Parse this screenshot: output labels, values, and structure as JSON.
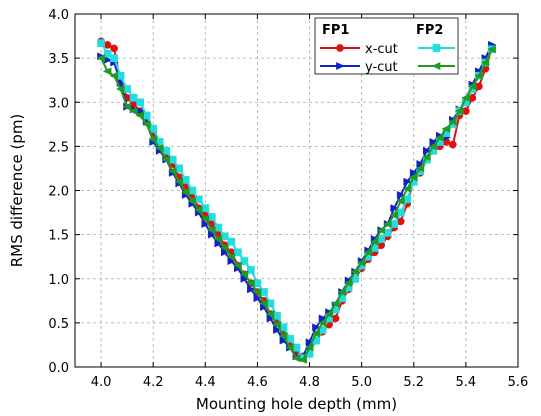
{
  "chart_data": {
    "type": "line",
    "title": "",
    "xlabel": "Mounting hole depth (mm)",
    "ylabel": "RMS difference (pm)",
    "xlim": [
      3.9,
      5.6
    ],
    "ylim": [
      0.0,
      4.0
    ],
    "xticks": [
      "4.0",
      "4.2",
      "4.4",
      "4.6",
      "4.8",
      "5.0",
      "5.2",
      "5.4",
      "5.6"
    ],
    "yticks": [
      "0.0",
      "0.5",
      "1.0",
      "1.5",
      "2.0",
      "2.5",
      "3.0",
      "3.5",
      "4.0"
    ],
    "grid": true,
    "legend": {
      "placement": "top-right",
      "group_titles": [
        "FP1",
        "FP2"
      ]
    },
    "series": [
      {
        "name": "x-cut",
        "group": "FP1",
        "color": "#dd1111",
        "marker": "circle",
        "x": [
          4.0,
          4.025,
          4.05,
          4.075,
          4.1,
          4.125,
          4.15,
          4.175,
          4.2,
          4.225,
          4.25,
          4.275,
          4.3,
          4.325,
          4.35,
          4.375,
          4.4,
          4.425,
          4.45,
          4.475,
          4.5,
          4.525,
          4.55,
          4.575,
          4.6,
          4.625,
          4.65,
          4.675,
          4.7,
          4.725,
          4.75,
          4.775,
          4.8,
          4.825,
          4.85,
          4.875,
          4.9,
          4.925,
          4.95,
          4.975,
          5.0,
          5.025,
          5.05,
          5.075,
          5.1,
          5.125,
          5.15,
          5.175,
          5.2,
          5.225,
          5.25,
          5.275,
          5.3,
          5.325,
          5.35,
          5.375,
          5.4,
          5.425,
          5.45,
          5.475,
          5.5
        ],
        "y": [
          3.69,
          3.65,
          3.61,
          3.22,
          3.05,
          2.98,
          2.9,
          2.82,
          2.65,
          2.52,
          2.38,
          2.3,
          2.15,
          2.05,
          1.95,
          1.8,
          1.72,
          1.62,
          1.5,
          1.38,
          1.3,
          1.15,
          1.05,
          0.95,
          0.85,
          0.75,
          0.6,
          0.5,
          0.38,
          0.28,
          0.18,
          0.12,
          0.2,
          0.3,
          0.4,
          0.48,
          0.55,
          0.75,
          0.88,
          1.0,
          1.12,
          1.22,
          1.3,
          1.38,
          1.48,
          1.58,
          1.65,
          1.85,
          2.12,
          2.2,
          2.35,
          2.45,
          2.5,
          2.55,
          2.52,
          2.85,
          2.9,
          3.05,
          3.18,
          3.38,
          3.62
        ]
      },
      {
        "name": "y-cut",
        "group": "FP1",
        "color": "#1122cc",
        "marker": "triangle-right",
        "x": [
          4.0,
          4.025,
          4.05,
          4.075,
          4.1,
          4.125,
          4.15,
          4.175,
          4.2,
          4.225,
          4.25,
          4.275,
          4.3,
          4.325,
          4.35,
          4.375,
          4.4,
          4.425,
          4.45,
          4.475,
          4.5,
          4.525,
          4.55,
          4.575,
          4.6,
          4.625,
          4.65,
          4.675,
          4.7,
          4.725,
          4.75,
          4.775,
          4.8,
          4.825,
          4.85,
          4.875,
          4.9,
          4.925,
          4.95,
          4.975,
          5.0,
          5.025,
          5.05,
          5.075,
          5.1,
          5.125,
          5.15,
          5.175,
          5.2,
          5.225,
          5.25,
          5.275,
          5.3,
          5.325,
          5.35,
          5.375,
          5.4,
          5.425,
          5.45,
          5.475,
          5.5
        ],
        "y": [
          3.52,
          3.48,
          3.45,
          3.22,
          2.95,
          2.92,
          2.9,
          2.78,
          2.55,
          2.45,
          2.35,
          2.2,
          2.08,
          1.95,
          1.85,
          1.75,
          1.62,
          1.5,
          1.4,
          1.3,
          1.2,
          1.12,
          1.0,
          0.88,
          0.78,
          0.68,
          0.55,
          0.42,
          0.3,
          0.22,
          0.12,
          0.12,
          0.28,
          0.45,
          0.55,
          0.62,
          0.7,
          0.85,
          0.98,
          1.08,
          1.2,
          1.32,
          1.45,
          1.55,
          1.62,
          1.8,
          1.95,
          2.1,
          2.2,
          2.3,
          2.45,
          2.55,
          2.62,
          2.6,
          2.8,
          2.92,
          3.0,
          3.2,
          3.35,
          3.5,
          3.65
        ]
      },
      {
        "name": "",
        "group": "FP2",
        "color": "#22dddd",
        "marker": "square",
        "x": [
          4.0,
          4.025,
          4.05,
          4.075,
          4.1,
          4.125,
          4.15,
          4.175,
          4.2,
          4.225,
          4.25,
          4.275,
          4.3,
          4.325,
          4.35,
          4.375,
          4.4,
          4.425,
          4.45,
          4.475,
          4.5,
          4.525,
          4.55,
          4.575,
          4.6,
          4.625,
          4.65,
          4.675,
          4.7,
          4.725,
          4.75,
          4.775,
          4.8,
          4.825,
          4.85,
          4.875,
          4.9,
          4.925,
          4.95,
          4.975,
          5.0,
          5.025,
          5.05,
          5.075,
          5.1,
          5.125,
          5.15,
          5.175,
          5.2,
          5.225,
          5.25,
          5.275,
          5.3,
          5.325,
          5.35,
          5.375,
          5.4,
          5.425,
          5.45,
          5.475,
          5.5
        ],
        "y": [
          3.67,
          3.55,
          3.5,
          3.3,
          3.15,
          3.05,
          3.0,
          2.85,
          2.7,
          2.55,
          2.45,
          2.35,
          2.25,
          2.12,
          2.0,
          1.9,
          1.8,
          1.7,
          1.58,
          1.48,
          1.42,
          1.3,
          1.2,
          1.1,
          0.95,
          0.85,
          0.72,
          0.58,
          0.45,
          0.32,
          0.22,
          0.1,
          0.15,
          0.3,
          0.42,
          0.55,
          0.65,
          0.78,
          0.9,
          1.0,
          1.15,
          1.25,
          1.35,
          1.45,
          1.52,
          1.62,
          1.75,
          1.9,
          2.1,
          2.22,
          2.35,
          2.45,
          2.55,
          2.65,
          2.75,
          2.9,
          3.0,
          3.15,
          3.3,
          3.45,
          3.6
        ]
      },
      {
        "name": "",
        "group": "FP2",
        "color": "#229922",
        "marker": "triangle-left",
        "x": [
          4.0,
          4.025,
          4.05,
          4.075,
          4.1,
          4.125,
          4.15,
          4.175,
          4.2,
          4.225,
          4.25,
          4.275,
          4.3,
          4.325,
          4.35,
          4.375,
          4.4,
          4.425,
          4.45,
          4.475,
          4.5,
          4.525,
          4.55,
          4.575,
          4.6,
          4.625,
          4.65,
          4.675,
          4.7,
          4.725,
          4.75,
          4.775,
          4.8,
          4.825,
          4.85,
          4.875,
          4.9,
          4.925,
          4.95,
          4.975,
          5.0,
          5.025,
          5.05,
          5.075,
          5.1,
          5.125,
          5.15,
          5.175,
          5.2,
          5.225,
          5.25,
          5.275,
          5.3,
          5.325,
          5.35,
          5.375,
          5.4,
          5.425,
          5.45,
          5.475,
          5.5
        ],
        "y": [
          3.5,
          3.35,
          3.3,
          3.15,
          2.95,
          2.9,
          2.85,
          2.75,
          2.58,
          2.48,
          2.35,
          2.22,
          2.1,
          1.98,
          1.88,
          1.78,
          1.68,
          1.55,
          1.45,
          1.35,
          1.25,
          1.15,
          1.05,
          0.95,
          0.85,
          0.72,
          0.6,
          0.48,
          0.35,
          0.22,
          0.1,
          0.08,
          0.22,
          0.38,
          0.5,
          0.6,
          0.72,
          0.85,
          0.95,
          1.08,
          1.18,
          1.3,
          1.42,
          1.55,
          1.62,
          1.72,
          1.88,
          2.02,
          2.15,
          2.25,
          2.38,
          2.5,
          2.6,
          2.7,
          2.78,
          2.9,
          3.05,
          3.18,
          3.3,
          3.45,
          3.6
        ]
      }
    ]
  }
}
